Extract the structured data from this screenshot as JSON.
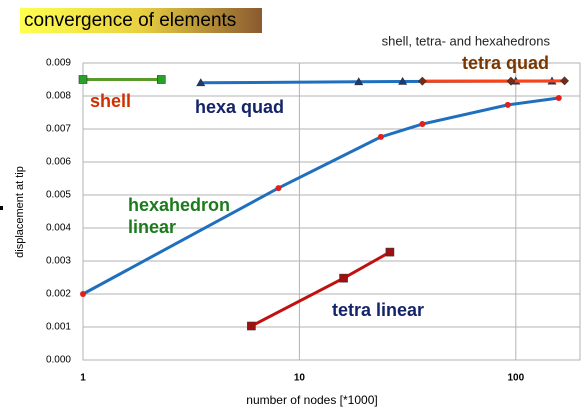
{
  "chart_data": {
    "type": "line",
    "title": "convergence of elements",
    "subtitle": "shell, tetra- and hexahedrons",
    "x_label": "number of nodes [*1000]",
    "y_label": "displacement at tip",
    "log_x": true,
    "grid": true,
    "xlim": [
      1,
      198
    ],
    "xticks": [
      1,
      10,
      100
    ],
    "ylim": [
      0,
      0.009
    ],
    "yticks": [
      {
        "value": 0,
        "label": "0.000"
      },
      0.001,
      0.002,
      0.003,
      0.004,
      0.005,
      0.006,
      0.007,
      0.008,
      0.009
    ],
    "series": [
      {
        "name": "shell",
        "color": "#5a9a2a",
        "marker": "square",
        "marker_color": "#2aa02a",
        "x": [
          1,
          2.3
        ],
        "values": [
          0.0085,
          0.0085
        ]
      },
      {
        "name": "hexa quad",
        "color": "#1f6fbf",
        "marker": "triangle",
        "marker_color": "#1a3a7a",
        "x": [
          3.5,
          18.8,
          30,
          100,
          147
        ],
        "values": [
          0.0084,
          0.00843,
          0.00844,
          0.00845,
          0.00845
        ]
      },
      {
        "name": "tetra quad",
        "color": "#ff4010",
        "marker": "diamond",
        "marker_color": "#7a2a10",
        "x": [
          37,
          95,
          168
        ],
        "values": [
          0.00845,
          0.00845,
          0.00846
        ]
      },
      {
        "name": "hexahedron linear",
        "color": "#1f6fbf",
        "marker": "circle",
        "marker_color": "#e02020",
        "x": [
          1,
          8,
          23.8,
          37,
          91.8,
          158
        ],
        "values": [
          0.002,
          0.00521,
          0.00676,
          0.00715,
          0.00773,
          0.00794
        ]
      },
      {
        "name": "tetra linear",
        "color": "#c01010",
        "marker": "square",
        "marker_color": "#a01010",
        "x": [
          6,
          16,
          26.2
        ],
        "values": [
          0.00103,
          0.00248,
          0.00327
        ]
      }
    ],
    "annotations": [
      {
        "text": [
          "shell"
        ],
        "color": "#d03000"
      },
      {
        "text": [
          "hexa quad"
        ],
        "color": "#14246a"
      },
      {
        "text": [
          "tetra quad"
        ],
        "color": "#7a3800"
      },
      {
        "text": [
          "hexahedron",
          "linear"
        ],
        "color": "#1e7a1e"
      },
      {
        "text": [
          "tetra linear"
        ],
        "color": "#14246a"
      }
    ]
  }
}
